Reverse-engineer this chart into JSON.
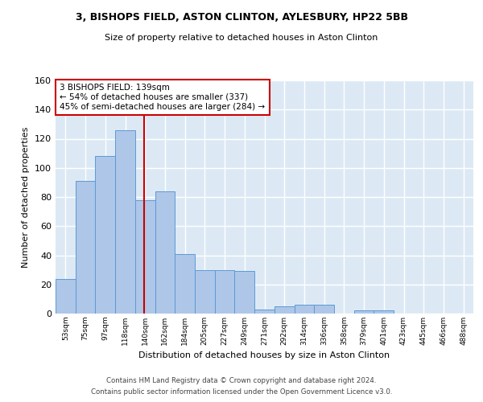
{
  "title1": "3, BISHOPS FIELD, ASTON CLINTON, AYLESBURY, HP22 5BB",
  "title2": "Size of property relative to detached houses in Aston Clinton",
  "xlabel": "Distribution of detached houses by size in Aston Clinton",
  "ylabel": "Number of detached properties",
  "bar_labels": [
    "53sqm",
    "75sqm",
    "97sqm",
    "118sqm",
    "140sqm",
    "162sqm",
    "184sqm",
    "205sqm",
    "227sqm",
    "249sqm",
    "271sqm",
    "292sqm",
    "314sqm",
    "336sqm",
    "358sqm",
    "379sqm",
    "401sqm",
    "423sqm",
    "445sqm",
    "466sqm",
    "488sqm"
  ],
  "bar_heights": [
    24,
    91,
    108,
    126,
    78,
    84,
    41,
    30,
    30,
    29,
    3,
    5,
    6,
    6,
    0,
    2,
    2,
    0,
    0,
    0,
    0
  ],
  "bar_color": "#aec6e8",
  "bar_edge_color": "#5b9bd5",
  "annotation_text": "3 BISHOPS FIELD: 139sqm\n← 54% of detached houses are smaller (337)\n45% of semi-detached houses are larger (284) →",
  "annotation_box_color": "#ffffff",
  "annotation_box_edge_color": "#cc0000",
  "line_color": "#cc0000",
  "background_color": "#dce9f5",
  "grid_color": "#ffffff",
  "footer1": "Contains HM Land Registry data © Crown copyright and database right 2024.",
  "footer2": "Contains public sector information licensed under the Open Government Licence v3.0.",
  "ylim": [
    0,
    160
  ],
  "yticks": [
    0,
    20,
    40,
    60,
    80,
    100,
    120,
    140,
    160
  ]
}
